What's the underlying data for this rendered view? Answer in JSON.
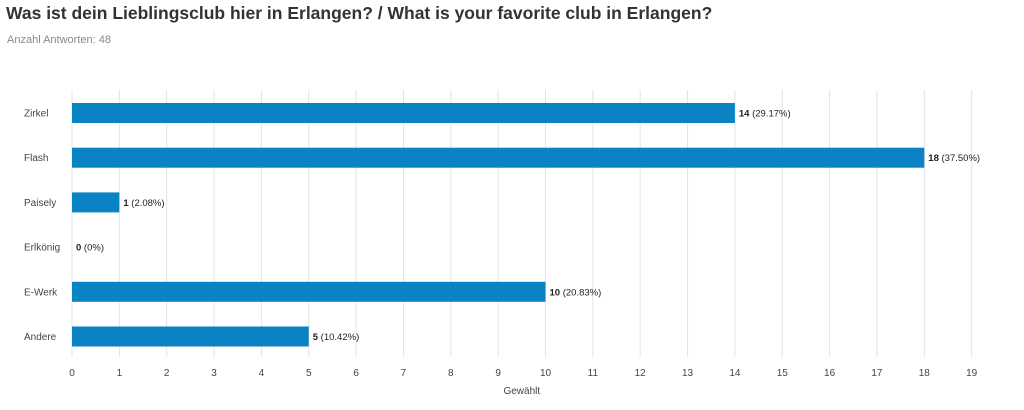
{
  "header": {
    "title": "Was ist dein Lieblingsclub hier in Erlangen? / What is your favorite club in Erlangen?",
    "responses": "Anzahl Antworten: 48"
  },
  "colors": {
    "bar": "#0a83c4",
    "grid": "#e3e3e3"
  },
  "chart_data": {
    "type": "bar",
    "orientation": "horizontal",
    "categories": [
      "Zirkel",
      "Flash",
      "Paisely",
      "Erlkönig",
      "E-Werk",
      "Andere"
    ],
    "values": [
      14,
      18,
      1,
      0,
      10,
      5
    ],
    "percent_labels": [
      "(29.17%)",
      "(37.50%)",
      "(2.08%)",
      "(0%)",
      "(20.83%)",
      "(10.42%)"
    ],
    "xlabel": "Gewählt",
    "xlim": [
      0,
      19
    ],
    "xticks": [
      0,
      1,
      2,
      3,
      4,
      5,
      6,
      7,
      8,
      9,
      10,
      11,
      12,
      13,
      14,
      15,
      16,
      17,
      18,
      19
    ],
    "grid": true
  }
}
